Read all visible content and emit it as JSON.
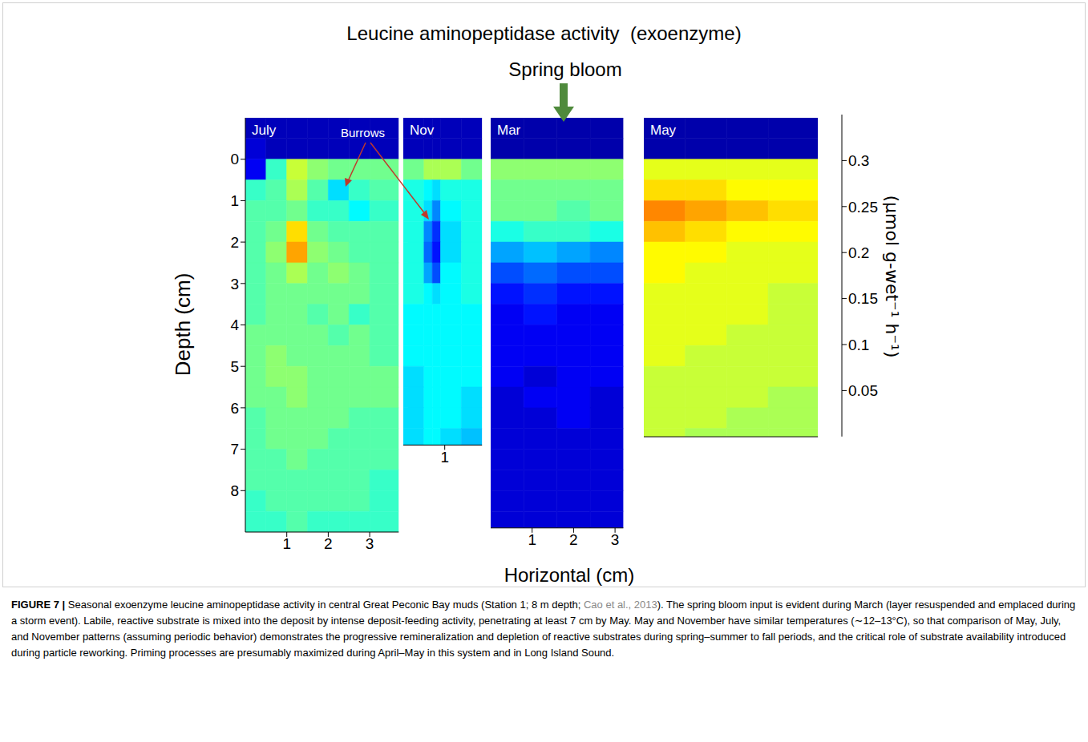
{
  "title": "Leucine aminopeptidase activity  (exoenzyme)",
  "annotations": {
    "spring_bloom": "Spring bloom",
    "burrows": "Burrows"
  },
  "x_label": "Horizontal (cm)",
  "y_label": "Depth (cm)",
  "chart_data": [
    {
      "type": "heatmap",
      "title": "July",
      "xlim": [
        0,
        3.7
      ],
      "xticks": [
        1,
        2,
        3
      ],
      "ylim": [
        -1,
        9
      ],
      "yticks": [
        0,
        1,
        2,
        3,
        4,
        5,
        6,
        7,
        8
      ],
      "x_bins": [
        0,
        0.5,
        1,
        1.5,
        2,
        2.5,
        3,
        3.7
      ],
      "y_bins": [
        -1,
        -0.5,
        0,
        0.5,
        1,
        1.5,
        2,
        2.5,
        3,
        3.5,
        4,
        4.5,
        5,
        5.5,
        6,
        6.5,
        7,
        7.5,
        8,
        8.5,
        9
      ],
      "cells": [
        [
          0.02,
          0.02,
          0.02,
          0.02,
          0.02,
          0.02,
          0.02
        ],
        [
          0.03,
          0.02,
          0.02,
          0.02,
          0.02,
          0.02,
          0.02
        ],
        [
          0.04,
          0.15,
          0.2,
          0.18,
          0.17,
          0.17,
          0.17
        ],
        [
          0.15,
          0.16,
          0.19,
          0.16,
          0.12,
          0.15,
          0.16
        ],
        [
          0.16,
          0.16,
          0.17,
          0.15,
          0.15,
          0.13,
          0.15
        ],
        [
          0.16,
          0.17,
          0.23,
          0.17,
          0.16,
          0.16,
          0.16
        ],
        [
          0.16,
          0.18,
          0.25,
          0.18,
          0.17,
          0.16,
          0.16
        ],
        [
          0.16,
          0.17,
          0.19,
          0.17,
          0.18,
          0.17,
          0.16
        ],
        [
          0.16,
          0.17,
          0.17,
          0.17,
          0.17,
          0.17,
          0.16
        ],
        [
          0.16,
          0.17,
          0.17,
          0.16,
          0.17,
          0.15,
          0.16
        ],
        [
          0.17,
          0.17,
          0.17,
          0.17,
          0.16,
          0.17,
          0.16
        ],
        [
          0.17,
          0.18,
          0.17,
          0.17,
          0.17,
          0.17,
          0.16
        ],
        [
          0.17,
          0.18,
          0.18,
          0.17,
          0.17,
          0.17,
          0.17
        ],
        [
          0.17,
          0.17,
          0.18,
          0.17,
          0.17,
          0.17,
          0.17
        ],
        [
          0.16,
          0.17,
          0.17,
          0.17,
          0.17,
          0.16,
          0.16
        ],
        [
          0.16,
          0.17,
          0.17,
          0.17,
          0.16,
          0.16,
          0.16
        ],
        [
          0.16,
          0.16,
          0.17,
          0.16,
          0.16,
          0.16,
          0.16
        ],
        [
          0.16,
          0.16,
          0.16,
          0.16,
          0.16,
          0.16,
          0.15
        ],
        [
          0.15,
          0.16,
          0.16,
          0.16,
          0.16,
          0.16,
          0.15
        ],
        [
          0.15,
          0.15,
          0.16,
          0.15,
          0.15,
          0.15,
          0.15
        ]
      ]
    },
    {
      "type": "heatmap",
      "title": "Nov",
      "xlim": [
        0,
        1.9
      ],
      "xticks": [
        1
      ],
      "ylim": [
        -1,
        6.9
      ],
      "tick_labels": "x",
      "x_bins": [
        0,
        0.5,
        0.7,
        0.9,
        1.4,
        1.9
      ],
      "y_bins": [
        -1,
        -0.5,
        0,
        0.5,
        1,
        1.5,
        2,
        2.5,
        3,
        3.5,
        4,
        4.5,
        5,
        5.5,
        6,
        6.5,
        6.9
      ],
      "cells": [
        [
          0.02,
          0.02,
          0.02,
          0.02,
          0.02
        ],
        [
          0.02,
          0.02,
          0.02,
          0.02,
          0.02
        ],
        [
          0.17,
          0.19,
          0.19,
          0.19,
          0.17
        ],
        [
          0.14,
          0.13,
          0.12,
          0.14,
          0.14
        ],
        [
          0.14,
          0.12,
          0.09,
          0.13,
          0.14
        ],
        [
          0.14,
          0.09,
          0.06,
          0.12,
          0.14
        ],
        [
          0.14,
          0.08,
          0.05,
          0.12,
          0.14
        ],
        [
          0.14,
          0.1,
          0.07,
          0.13,
          0.14
        ],
        [
          0.14,
          0.13,
          0.12,
          0.13,
          0.14
        ],
        [
          0.13,
          0.13,
          0.13,
          0.13,
          0.13
        ],
        [
          0.13,
          0.13,
          0.13,
          0.13,
          0.13
        ],
        [
          0.13,
          0.13,
          0.13,
          0.13,
          0.13
        ],
        [
          0.12,
          0.13,
          0.13,
          0.13,
          0.13
        ],
        [
          0.12,
          0.13,
          0.13,
          0.13,
          0.12
        ],
        [
          0.12,
          0.13,
          0.13,
          0.13,
          0.12
        ],
        [
          0.12,
          0.13,
          0.13,
          0.12,
          0.11
        ]
      ]
    },
    {
      "type": "heatmap",
      "title": "Mar",
      "xlim": [
        0,
        3.2
      ],
      "xticks": [
        1,
        2,
        3
      ],
      "ylim": [
        -1,
        8.9
      ],
      "tick_labels": "x",
      "x_bins": [
        0,
        0.8,
        1.6,
        2.4,
        3.2
      ],
      "y_bins": [
        -1,
        -0.5,
        0,
        0.5,
        1,
        1.5,
        2,
        2.5,
        3,
        3.5,
        4,
        4.5,
        5,
        5.5,
        6,
        6.5,
        7,
        7.5,
        8,
        8.5,
        8.9
      ],
      "cells": [
        [
          0.015,
          0.015,
          0.015,
          0.015
        ],
        [
          0.015,
          0.015,
          0.015,
          0.015
        ],
        [
          0.18,
          0.18,
          0.18,
          0.18
        ],
        [
          0.17,
          0.17,
          0.17,
          0.17
        ],
        [
          0.17,
          0.17,
          0.16,
          0.17
        ],
        [
          0.14,
          0.15,
          0.15,
          0.14
        ],
        [
          0.1,
          0.11,
          0.1,
          0.09
        ],
        [
          0.07,
          0.08,
          0.07,
          0.07
        ],
        [
          0.05,
          0.06,
          0.05,
          0.05
        ],
        [
          0.04,
          0.05,
          0.04,
          0.04
        ],
        [
          0.04,
          0.04,
          0.04,
          0.04
        ],
        [
          0.04,
          0.04,
          0.04,
          0.04
        ],
        [
          0.04,
          0.03,
          0.04,
          0.04
        ],
        [
          0.03,
          0.04,
          0.04,
          0.03
        ],
        [
          0.03,
          0.03,
          0.04,
          0.03
        ],
        [
          0.03,
          0.03,
          0.03,
          0.03
        ],
        [
          0.03,
          0.03,
          0.03,
          0.03
        ],
        [
          0.03,
          0.03,
          0.03,
          0.03
        ],
        [
          0.03,
          0.03,
          0.03,
          0.03
        ],
        [
          0.03,
          0.03,
          0.03,
          0.03
        ]
      ]
    },
    {
      "type": "heatmap",
      "title": "May",
      "xlim": [
        0,
        4.2
      ],
      "xticks": [],
      "ylim": [
        -1,
        6.7
      ],
      "tick_labels": false,
      "x_bins": [
        0,
        1,
        2,
        3,
        4.2
      ],
      "y_bins": [
        -1,
        -0.5,
        0,
        0.5,
        1,
        1.5,
        2,
        2.5,
        3,
        3.5,
        4,
        4.5,
        5,
        5.5,
        6,
        6.5,
        6.7
      ],
      "cells": [
        [
          0.015,
          0.015,
          0.015,
          0.015
        ],
        [
          0.015,
          0.015,
          0.015,
          0.015
        ],
        [
          0.21,
          0.21,
          0.21,
          0.21
        ],
        [
          0.23,
          0.23,
          0.22,
          0.22
        ],
        [
          0.26,
          0.25,
          0.24,
          0.23
        ],
        [
          0.24,
          0.23,
          0.22,
          0.22
        ],
        [
          0.22,
          0.22,
          0.21,
          0.21
        ],
        [
          0.22,
          0.21,
          0.21,
          0.21
        ],
        [
          0.21,
          0.21,
          0.21,
          0.2
        ],
        [
          0.21,
          0.21,
          0.21,
          0.2
        ],
        [
          0.21,
          0.21,
          0.2,
          0.2
        ],
        [
          0.21,
          0.2,
          0.2,
          0.2
        ],
        [
          0.2,
          0.2,
          0.2,
          0.2
        ],
        [
          0.2,
          0.2,
          0.2,
          0.19
        ],
        [
          0.2,
          0.2,
          0.19,
          0.19
        ],
        [
          0.2,
          0.19,
          0.19,
          0.19
        ]
      ]
    }
  ],
  "colorbar": {
    "label": "(μmol g-wet⁻¹ h⁻¹)",
    "range": [
      0,
      0.35
    ],
    "ticks": [
      0.05,
      0.1,
      0.15,
      0.2,
      0.25,
      0.3
    ]
  },
  "caption": {
    "label": "FIGURE 7 |",
    "text_before": "Seasonal exoenzyme leucine aminopeptidase activity in central Great Peconic Bay muds (Station 1; 8 m depth; ",
    "citation": "Cao et al., 2013",
    "text_after": "). The spring bloom input is evident during March (layer resuspended and emplaced during a storm event). Labile, reactive substrate is mixed into the deposit by intense deposit-feeding activity, penetrating at least 7 cm by May. May and November have similar temperatures (∼12–13°C), so that comparison of May, July, and November patterns (assuming periodic behavior) demonstrates the progressive remineralization and depletion of reactive substrates during spring–summer to fall periods, and the critical role of substrate availability introduced during particle reworking. Priming processes are presumably maximized during April–May in this system and in Long Island Sound."
  }
}
